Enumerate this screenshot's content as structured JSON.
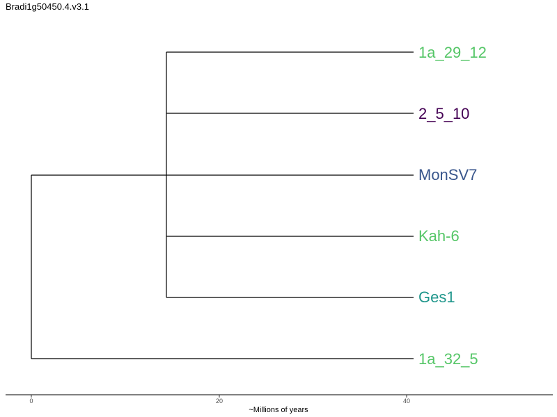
{
  "title": "Bradi1g50450.4.v3.1",
  "axis": {
    "label": "~Millions of years",
    "ticks": [
      "0",
      "20",
      "40"
    ]
  },
  "tree": {
    "tips": [
      {
        "name": "1a_29_12",
        "color": "#55c667"
      },
      {
        "name": "2_5_10",
        "color": "#440154"
      },
      {
        "name": "MonSV7",
        "color": "#39568c"
      },
      {
        "name": "Kah-6",
        "color": "#55c667"
      },
      {
        "name": "Ges1",
        "color": "#1f968b"
      },
      {
        "name": "1a_32_5",
        "color": "#55c667"
      }
    ]
  }
}
